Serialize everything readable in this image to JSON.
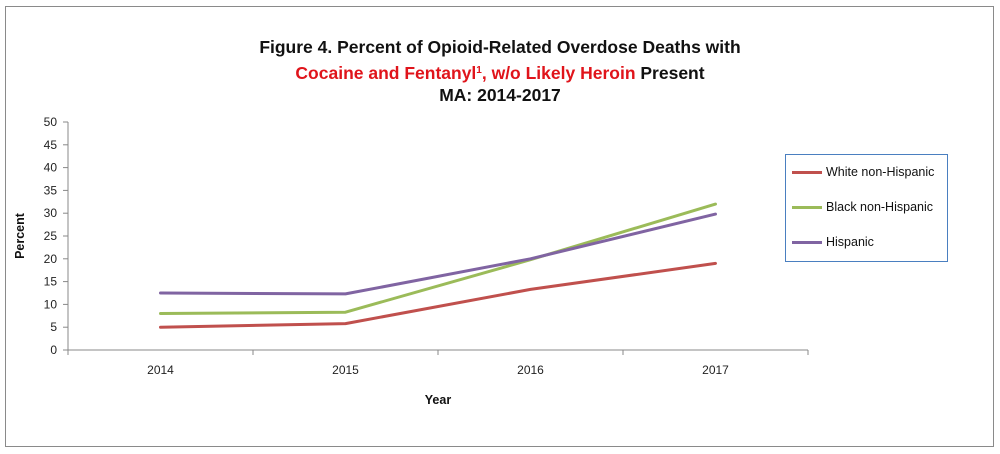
{
  "title": {
    "line1": "Figure 4. Percent of Opioid-Related  Overdose Deaths with",
    "line2_red": "Cocaine and Fentanyl",
    "line2_sup": "1",
    "line2_red2": ", w/o Likely Heroin",
    "line2_rest": " Present",
    "line3": "MA: 2014-2017"
  },
  "chart_data": {
    "type": "line",
    "xlabel": "Year",
    "ylabel": "Percent",
    "ylim": [
      0,
      50
    ],
    "yticks": [
      0,
      5,
      10,
      15,
      20,
      25,
      30,
      35,
      40,
      45,
      50
    ],
    "categories": [
      "2014",
      "2015",
      "2016",
      "2017"
    ],
    "grid": false,
    "legend_position": "right",
    "series": [
      {
        "name": "White non-Hispanic",
        "color": "#c0504d",
        "values": [
          5.0,
          5.8,
          13.3,
          19.0
        ]
      },
      {
        "name": "Black non-Hispanic",
        "color": "#9bbb59",
        "values": [
          8.0,
          8.3,
          19.8,
          32.0
        ]
      },
      {
        "name": "Hispanic",
        "color": "#8064a2",
        "values": [
          12.5,
          12.3,
          20.0,
          29.8
        ]
      }
    ]
  }
}
